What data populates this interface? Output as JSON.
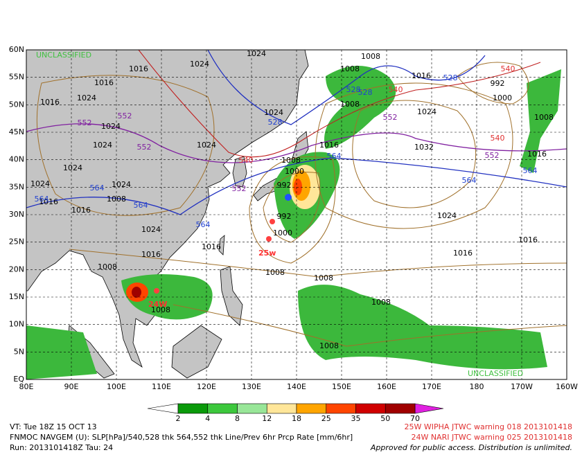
{
  "map": {
    "classification": [
      "UNCLASSIFIED",
      "UNCLASSIFIED"
    ],
    "lat_labels": [
      "60N",
      "55N",
      "50N",
      "45N",
      "40N",
      "35N",
      "30N",
      "25N",
      "20N",
      "15N",
      "10N",
      "5N",
      "EQ"
    ],
    "lon_labels": [
      "80E",
      "90E",
      "100E",
      "110E",
      "120E",
      "130E",
      "140E",
      "150E",
      "160E",
      "170E",
      "180",
      "170W",
      "160W"
    ],
    "contour_labels": [
      "1024",
      "1024",
      "1016",
      "1016",
      "1024",
      "1016",
      "1024",
      "1024",
      "1024",
      "1024",
      "1024",
      "1024",
      "1016",
      "1008",
      "1016",
      "1024",
      "1016",
      "1016",
      "1008",
      "1008",
      "1008",
      "1008",
      "1008",
      "1008",
      "1024",
      "1016",
      "1008",
      "1000",
      "992",
      "992",
      "1000",
      "1024",
      "1032",
      "1024",
      "1016",
      "1016",
      "1016",
      "1008",
      "1000",
      "992",
      "1016",
      "1008",
      "1008",
      "1008",
      "552",
      "552",
      "552",
      "552",
      "552",
      "552",
      "564",
      "564",
      "564",
      "564",
      "564",
      "564",
      "564",
      "528",
      "528",
      "528",
      "528",
      "540",
      "540",
      "540",
      "540"
    ],
    "storm_labels": [
      "25w",
      "24W"
    ]
  },
  "colorbar": {
    "ticks": [
      2,
      4,
      8,
      12,
      18,
      25,
      35,
      50,
      70
    ]
  },
  "footer": {
    "valid_time": "VT: Tue 18Z 15 OCT 13",
    "model": "FNMOC NAVGEM (U): SLP[hPa]/540,528 thk 564,552 thk Line/Prev 6hr Prcp Rate [mm/6hr]",
    "run": "Run: 2013101418Z Tau: 24",
    "warnings": [
      "25W WIPHA JTWC warning 018 2013101418",
      "24W NARI JTWC warning 025 2013101418"
    ],
    "release": "Approved for public access. Distribution is unlimited."
  }
}
